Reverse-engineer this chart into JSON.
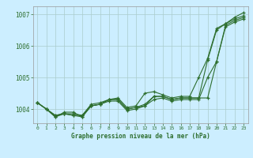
{
  "background_color": "#cceeff",
  "grid_color": "#aacccc",
  "line_color": "#2d6e2d",
  "xlabel": "Graphe pression niveau de la mer (hPa)",
  "ylim": [
    1003.55,
    1007.25
  ],
  "xlim": [
    -0.5,
    23.5
  ],
  "yticks": [
    1004,
    1005,
    1006,
    1007
  ],
  "xticks": [
    0,
    1,
    2,
    3,
    4,
    5,
    6,
    7,
    8,
    9,
    10,
    11,
    12,
    13,
    14,
    15,
    16,
    17,
    18,
    19,
    20,
    21,
    22,
    23
  ],
  "series": [
    [
      1004.2,
      1004.0,
      1003.8,
      1003.85,
      1003.8,
      1003.8,
      1004.15,
      1004.2,
      1004.3,
      1004.35,
      1004.05,
      1004.1,
      1004.5,
      1004.55,
      1004.45,
      1004.35,
      1004.4,
      1004.4,
      1005.0,
      1005.6,
      1006.55,
      1006.7,
      1006.9,
      1007.05
    ],
    [
      1004.2,
      1004.0,
      1003.75,
      1003.9,
      1003.9,
      1003.75,
      1004.1,
      1004.15,
      1004.3,
      1004.3,
      1004.0,
      1004.05,
      1004.1,
      1004.4,
      1004.4,
      1004.3,
      1004.35,
      1004.35,
      1004.35,
      1005.55,
      1006.5,
      1006.7,
      1006.85,
      1006.95
    ],
    [
      1004.2,
      1004.0,
      1003.8,
      1003.85,
      1003.8,
      1003.75,
      1004.1,
      1004.15,
      1004.25,
      1004.25,
      1003.95,
      1004.0,
      1004.1,
      1004.3,
      1004.35,
      1004.25,
      1004.3,
      1004.3,
      1004.3,
      1005.0,
      1005.5,
      1006.65,
      1006.8,
      1006.9
    ],
    [
      1004.2,
      1004.0,
      1003.75,
      1003.85,
      1003.85,
      1003.8,
      1004.1,
      1004.15,
      1004.3,
      1004.3,
      1004.0,
      1004.05,
      1004.15,
      1004.4,
      1004.4,
      1004.3,
      1004.35,
      1004.35,
      1004.35,
      1004.35,
      1005.5,
      1006.6,
      1006.75,
      1006.85
    ]
  ]
}
